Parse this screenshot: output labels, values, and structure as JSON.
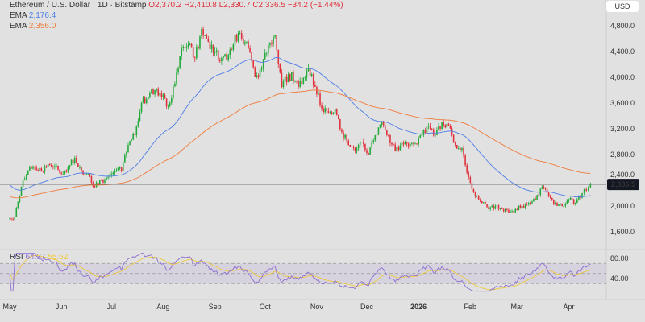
{
  "header": {
    "symbol": "Ethereum / U.S. Dollar · 1D · Bitstamp",
    "open": "O2,370.2",
    "high": "H2,410.8",
    "low": "L2,330.7",
    "close": "C2,336.5",
    "change": "−34.2 (−1.44%)",
    "ema1_label": "EMA",
    "ema1_value": "2,176.4",
    "ema2_label": "EMA",
    "ema2_value": "2,356.0",
    "rsi_label": "RSI",
    "rsi_value": "64.37",
    "rsi_ma_value": "55.52",
    "currency": "USD"
  },
  "colors": {
    "up": "#22ab3a",
    "down": "#e0313c",
    "ema1": "#4c7ce8",
    "ema2": "#f0793a",
    "rsi": "#8d6fd0",
    "rsi_ma": "#f0c93a",
    "background": "#e1e1e1"
  },
  "chart_data": {
    "type": "candlestick",
    "ylim": [
      1400,
      5000
    ],
    "y_ticks": [
      "4,800.0",
      "4,400.0",
      "4,000.0",
      "3,600.0",
      "3,200.0",
      "2,800.0",
      "2,400.0",
      "2,000.0",
      "1,600.0"
    ],
    "y_tick_values": [
      4800,
      4400,
      4000,
      3600,
      3200,
      2800,
      2400,
      2000,
      1600
    ],
    "last_price": 2336.5,
    "last_price_label": "2,336.5",
    "rsi_ticks": [
      "80.00",
      "40.00"
    ],
    "rsi_tick_values": [
      80,
      40
    ],
    "x_ticks": [
      [
        "2025-05-01",
        "May"
      ],
      [
        "2025-06-01",
        "Jun"
      ],
      [
        "2025-07-01",
        "Jul"
      ],
      [
        "2025-08-01",
        "Aug"
      ],
      [
        "2025-09-01",
        "Sep"
      ],
      [
        "2025-10-01",
        "Oct"
      ],
      [
        "2025-11-01",
        "Nov"
      ],
      [
        "2025-12-01",
        "Dec"
      ],
      [
        "2026-01-01",
        "2026"
      ],
      [
        "2026-02-01",
        "Feb"
      ],
      [
        "2026-03-01",
        "Mar"
      ],
      [
        "2026-04-01",
        "Apr"
      ]
    ],
    "closes": [
      [
        "2025-04-30",
        1800
      ],
      [
        "2025-05-04",
        1830
      ],
      [
        "2025-05-08",
        2300
      ],
      [
        "2025-05-12",
        2550
      ],
      [
        "2025-05-16",
        2600
      ],
      [
        "2025-05-20",
        2550
      ],
      [
        "2025-05-24",
        2650
      ],
      [
        "2025-05-28",
        2620
      ],
      [
        "2025-06-01",
        2500
      ],
      [
        "2025-06-05",
        2600
      ],
      [
        "2025-06-09",
        2750
      ],
      [
        "2025-06-13",
        2550
      ],
      [
        "2025-06-17",
        2500
      ],
      [
        "2025-06-21",
        2300
      ],
      [
        "2025-06-25",
        2400
      ],
      [
        "2025-06-29",
        2450
      ],
      [
        "2025-07-03",
        2550
      ],
      [
        "2025-07-07",
        2550
      ],
      [
        "2025-07-11",
        2950
      ],
      [
        "2025-07-15",
        3100
      ],
      [
        "2025-07-19",
        3600
      ],
      [
        "2025-07-23",
        3700
      ],
      [
        "2025-07-27",
        3800
      ],
      [
        "2025-07-31",
        3700
      ],
      [
        "2025-08-04",
        3550
      ],
      [
        "2025-08-08",
        3900
      ],
      [
        "2025-08-12",
        4450
      ],
      [
        "2025-08-16",
        4500
      ],
      [
        "2025-08-20",
        4300
      ],
      [
        "2025-08-24",
        4750
      ],
      [
        "2025-08-28",
        4550
      ],
      [
        "2025-09-01",
        4400
      ],
      [
        "2025-09-05",
        4300
      ],
      [
        "2025-09-09",
        4350
      ],
      [
        "2025-09-13",
        4650
      ],
      [
        "2025-09-17",
        4600
      ],
      [
        "2025-09-21",
        4450
      ],
      [
        "2025-09-25",
        4000
      ],
      [
        "2025-09-29",
        4150
      ],
      [
        "2025-10-03",
        4500
      ],
      [
        "2025-10-07",
        4650
      ],
      [
        "2025-10-11",
        3850
      ],
      [
        "2025-10-15",
        4050
      ],
      [
        "2025-10-19",
        3950
      ],
      [
        "2025-10-23",
        3900
      ],
      [
        "2025-10-27",
        4150
      ],
      [
        "2025-10-31",
        3850
      ],
      [
        "2025-11-04",
        3500
      ],
      [
        "2025-11-08",
        3450
      ],
      [
        "2025-11-12",
        3500
      ],
      [
        "2025-11-16",
        3150
      ],
      [
        "2025-11-20",
        2950
      ],
      [
        "2025-11-24",
        2850
      ],
      [
        "2025-11-28",
        3000
      ],
      [
        "2025-12-02",
        2800
      ],
      [
        "2025-12-06",
        3100
      ],
      [
        "2025-12-10",
        3300
      ],
      [
        "2025-12-14",
        3100
      ],
      [
        "2025-12-18",
        2850
      ],
      [
        "2025-12-22",
        2980
      ],
      [
        "2025-12-26",
        2930
      ],
      [
        "2025-12-30",
        2970
      ],
      [
        "2026-01-03",
        3100
      ],
      [
        "2026-01-07",
        3250
      ],
      [
        "2026-01-11",
        3100
      ],
      [
        "2026-01-15",
        3300
      ],
      [
        "2026-01-19",
        3250
      ],
      [
        "2026-01-23",
        2950
      ],
      [
        "2026-01-27",
        2900
      ],
      [
        "2026-01-31",
        2450
      ],
      [
        "2026-02-04",
        2150
      ],
      [
        "2026-02-08",
        2050
      ],
      [
        "2026-02-12",
        1950
      ],
      [
        "2026-02-16",
        2000
      ],
      [
        "2026-02-20",
        1950
      ],
      [
        "2026-02-24",
        1900
      ],
      [
        "2026-02-28",
        1950
      ],
      [
        "2026-03-04",
        2000
      ],
      [
        "2026-03-08",
        2050
      ],
      [
        "2026-03-12",
        2100
      ],
      [
        "2026-03-16",
        2300
      ],
      [
        "2026-03-20",
        2150
      ],
      [
        "2026-03-24",
        2050
      ],
      [
        "2026-03-28",
        2000
      ],
      [
        "2026-04-01",
        2100
      ],
      [
        "2026-04-05",
        2050
      ],
      [
        "2026-04-09",
        2200
      ],
      [
        "2026-04-14",
        2336.5
      ]
    ]
  }
}
